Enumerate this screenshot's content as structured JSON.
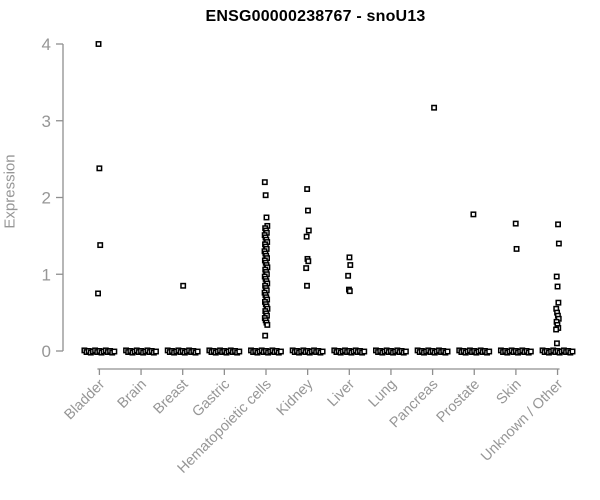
{
  "chart_data": {
    "type": "scatter",
    "title": "ENSG00000238767 - snoU13",
    "ylabel": "Expression",
    "xlabel": "",
    "ylim": [
      0,
      4
    ],
    "yticks": [
      0,
      1,
      2,
      3,
      4
    ],
    "grid": false,
    "legend": false,
    "marker": "open-square",
    "colors": {
      "point": "#000000",
      "axis": "#8f8f8f",
      "tick_text": "#969696",
      "title": "#000000",
      "background": "#ffffff"
    },
    "categories": [
      "Bladder",
      "Brain",
      "Breast",
      "Gastric",
      "Hematopoietic cells",
      "Kidney",
      "Liver",
      "Lung",
      "Pancreas",
      "Prostate",
      "Skin",
      "Unknown / Other"
    ],
    "groups": [
      {
        "category": "Bladder",
        "values": [
          4.0,
          2.38,
          1.38,
          0.75
        ],
        "zero_cluster": true
      },
      {
        "category": "Brain",
        "values": [],
        "zero_cluster": true
      },
      {
        "category": "Breast",
        "values": [
          0.85
        ],
        "zero_cluster": true
      },
      {
        "category": "Gastric",
        "values": [],
        "zero_cluster": true
      },
      {
        "category": "Hematopoietic cells",
        "values": [
          2.2,
          2.03,
          1.74,
          1.63,
          1.6,
          1.57,
          1.54,
          1.51,
          1.48,
          1.45,
          1.42,
          1.39,
          1.36,
          1.33,
          1.3,
          1.27,
          1.24,
          1.21,
          1.18,
          1.15,
          1.12,
          1.09,
          1.06,
          1.03,
          1.0,
          0.97,
          0.94,
          0.91,
          0.88,
          0.85,
          0.82,
          0.79,
          0.76,
          0.73,
          0.7,
          0.67,
          0.64,
          0.61,
          0.58,
          0.55,
          0.52,
          0.49,
          0.46,
          0.43,
          0.4,
          0.37,
          0.34,
          0.2
        ],
        "zero_cluster": true
      },
      {
        "category": "Kidney",
        "values": [
          2.11,
          1.83,
          1.57,
          1.49,
          1.2,
          1.17,
          1.08,
          0.85
        ],
        "zero_cluster": true
      },
      {
        "category": "Liver",
        "values": [
          1.22,
          1.12,
          0.98,
          0.8,
          0.78
        ],
        "zero_cluster": true
      },
      {
        "category": "Lung",
        "values": [],
        "zero_cluster": true
      },
      {
        "category": "Pancreas",
        "values": [
          3.17
        ],
        "zero_cluster": true
      },
      {
        "category": "Prostate",
        "values": [
          1.78
        ],
        "zero_cluster": true
      },
      {
        "category": "Skin",
        "values": [
          1.66,
          1.33
        ],
        "zero_cluster": true
      },
      {
        "category": "Unknown / Other",
        "values": [
          1.65,
          1.4,
          0.97,
          0.84,
          0.63,
          0.55,
          0.5,
          0.46,
          0.42,
          0.38,
          0.34,
          0.3,
          0.28,
          0.1
        ],
        "zero_cluster": true
      }
    ]
  }
}
